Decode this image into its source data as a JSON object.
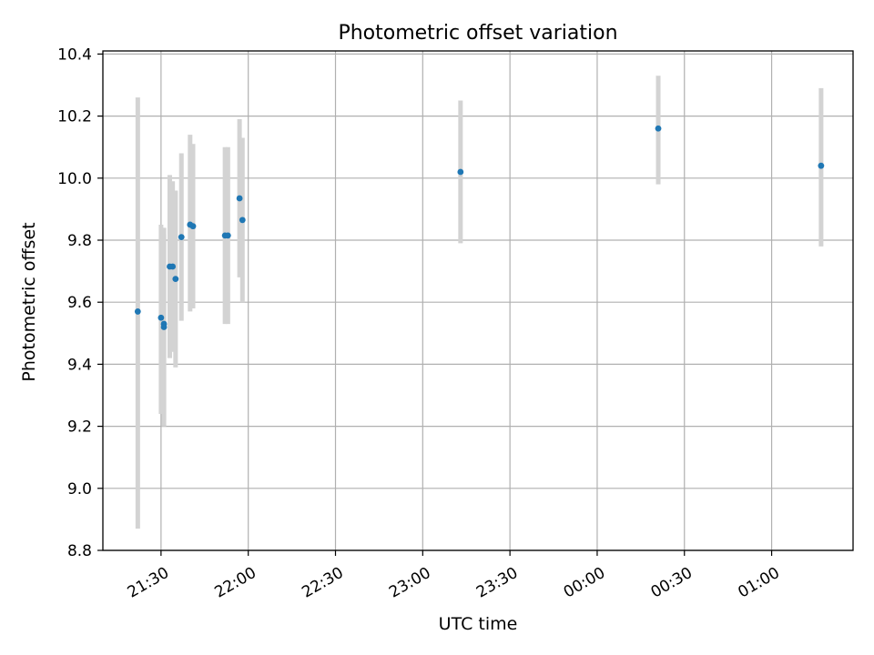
{
  "chart_data": {
    "type": "scatter",
    "title": "Photometric offset variation",
    "xlabel": "UTC time",
    "ylabel": "Photometric offset",
    "grid": true,
    "x_ticks": [
      "21:30",
      "22:00",
      "22:30",
      "23:00",
      "23:30",
      "00:00",
      "00:30",
      "01:00"
    ],
    "y_ticks": [
      "8.8",
      "9.0",
      "9.2",
      "9.4",
      "9.6",
      "9.8",
      "10.0",
      "10.2",
      "10.4"
    ],
    "xlim": [
      "21:10",
      "01:28"
    ],
    "ylim": [
      8.8,
      10.41
    ],
    "colors": {
      "points": "#1f77b4",
      "errorbars": "#d3d3d3",
      "grid": "#b0b0b0"
    },
    "points": [
      {
        "x": "21:22",
        "y": 9.57,
        "yerr_low": 8.87,
        "yerr_high": 10.26
      },
      {
        "x": "21:30",
        "y": 9.55,
        "yerr_low": 9.24,
        "yerr_high": 9.85
      },
      {
        "x": "21:31",
        "y": 9.53,
        "yerr_low": 9.2,
        "yerr_high": 9.84
      },
      {
        "x": "21:31",
        "y": 9.52,
        "yerr_low": 9.22,
        "yerr_high": 9.82
      },
      {
        "x": "21:33",
        "y": 9.715,
        "yerr_low": 9.42,
        "yerr_high": 10.01
      },
      {
        "x": "21:34",
        "y": 9.715,
        "yerr_low": 9.44,
        "yerr_high": 9.99
      },
      {
        "x": "21:35",
        "y": 9.675,
        "yerr_low": 9.39,
        "yerr_high": 9.96
      },
      {
        "x": "21:37",
        "y": 9.81,
        "yerr_low": 9.54,
        "yerr_high": 10.08
      },
      {
        "x": "21:40",
        "y": 9.85,
        "yerr_low": 9.57,
        "yerr_high": 10.14
      },
      {
        "x": "21:41",
        "y": 9.845,
        "yerr_low": 9.58,
        "yerr_high": 10.11
      },
      {
        "x": "21:52",
        "y": 9.815,
        "yerr_low": 9.53,
        "yerr_high": 10.1
      },
      {
        "x": "21:53",
        "y": 9.815,
        "yerr_low": 9.53,
        "yerr_high": 10.1
      },
      {
        "x": "21:57",
        "y": 9.935,
        "yerr_low": 9.68,
        "yerr_high": 10.19
      },
      {
        "x": "21:58",
        "y": 9.865,
        "yerr_low": 9.6,
        "yerr_high": 10.13
      },
      {
        "x": "23:13",
        "y": 10.02,
        "yerr_low": 9.79,
        "yerr_high": 10.25
      },
      {
        "x": "00:21",
        "y": 10.16,
        "yerr_low": 9.98,
        "yerr_high": 10.33
      },
      {
        "x": "01:17",
        "y": 10.04,
        "yerr_low": 9.78,
        "yerr_high": 10.29
      }
    ]
  }
}
